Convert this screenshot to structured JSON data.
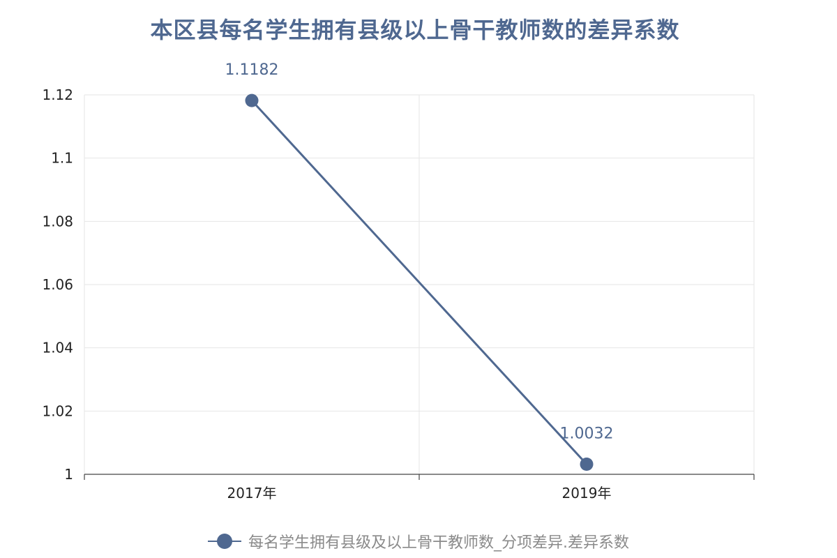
{
  "colors": {
    "series": "#4f6890",
    "title": "#4f6890",
    "grid": "#e6e6e6",
    "axis": "#444444",
    "legend_text": "#8a8a8a"
  },
  "chart_data": {
    "type": "line",
    "title": "本区县每名学生拥有县级以上骨干教师数的差异系数",
    "xlabel": "",
    "ylabel": "",
    "categories": [
      "2017年",
      "2019年"
    ],
    "series": [
      {
        "name": "每名学生拥有县级及以上骨干教师数_分项差异.差异系数",
        "values": [
          1.1182,
          1.0032
        ],
        "labels": [
          "1.1182",
          "1.0032"
        ]
      }
    ],
    "ylim": [
      1,
      1.12
    ],
    "yticks": [
      1,
      1.02,
      1.04,
      1.06,
      1.08,
      1.1,
      1.12
    ],
    "ytick_labels": [
      "1",
      "1.02",
      "1.04",
      "1.06",
      "1.08",
      "1.1",
      "1.12"
    ],
    "grid": true,
    "legend_position": "bottom",
    "marker": "circle"
  }
}
